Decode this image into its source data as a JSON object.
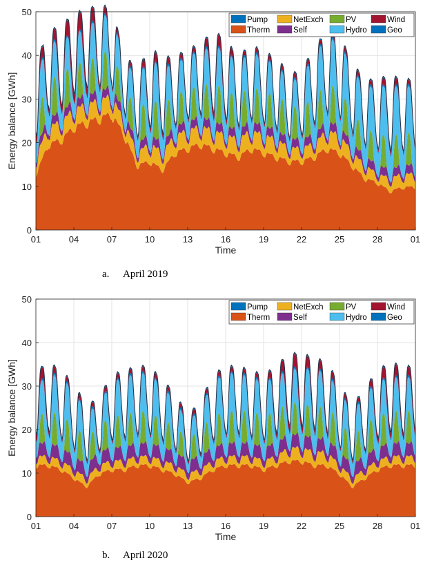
{
  "captions": [
    "a.\tApril 2019",
    "b.\tApril 2020"
  ],
  "chart_data": [
    {
      "type": "area",
      "stacked": true,
      "xlabel": "Time",
      "ylabel": "Energy balance [GWh]",
      "ylim": [
        0,
        50
      ],
      "yticks": [
        0,
        10,
        20,
        30,
        40,
        50
      ],
      "xticks": [
        "01",
        "04",
        "07",
        "10",
        "13",
        "16",
        "19",
        "22",
        "25",
        "28",
        "01"
      ],
      "legend_position": "top-right",
      "grid": true,
      "series": [
        {
          "name": "Therm",
          "color": "#d95319",
          "values": [
            13,
            20,
            21,
            24,
            25,
            26,
            27,
            22,
            15,
            16,
            14,
            18,
            19,
            20,
            19,
            18,
            17,
            19,
            18,
            17,
            16,
            16,
            17,
            19,
            18,
            15,
            12,
            11,
            9,
            10
          ]
        },
        {
          "name": "NetExch",
          "color": "#edb120",
          "values": [
            4,
            4,
            4,
            4,
            4,
            4,
            4,
            3,
            3,
            4,
            4,
            4,
            4,
            4,
            4,
            4,
            4,
            4,
            4,
            4,
            3,
            3,
            3,
            4,
            4,
            3,
            3,
            2,
            3,
            3
          ]
        },
        {
          "name": "Self",
          "color": "#7e2f8e",
          "values": [
            2,
            2,
            2,
            2,
            2,
            2,
            2,
            2,
            2,
            2,
            2,
            2,
            2,
            2,
            2,
            2,
            2,
            2,
            2,
            2,
            2,
            2,
            2,
            2,
            2,
            2,
            2,
            2,
            2,
            2
          ]
        },
        {
          "name": "PV",
          "color": "#77ac30",
          "values": [
            6,
            7,
            7,
            7,
            6,
            7,
            7,
            5,
            6,
            7,
            7,
            6,
            6,
            6,
            7,
            7,
            6,
            7,
            6,
            7,
            6,
            6,
            7,
            7,
            7,
            6,
            5,
            6,
            6,
            6
          ]
        },
        {
          "name": "Hydro",
          "color": "#4dbeee",
          "values": [
            9,
            9,
            8,
            7,
            8,
            9,
            8,
            6,
            8,
            9,
            9,
            7,
            8,
            8,
            9,
            9,
            8,
            8,
            8,
            7,
            6,
            7,
            10,
            11,
            11,
            10,
            10,
            11,
            12,
            11
          ]
        },
        {
          "name": "Geo",
          "color": "#0072bd",
          "values": [
            0.5,
            0.5,
            0.5,
            0.5,
            0.5,
            0.5,
            0.5,
            0.5,
            0.5,
            0.5,
            0.5,
            0.5,
            0.5,
            0.5,
            0.5,
            0.5,
            0.5,
            0.5,
            0.5,
            0.5,
            0.5,
            0.5,
            0.5,
            0.5,
            0.5,
            0.5,
            0.5,
            0.5,
            0.5,
            0.5
          ]
        },
        {
          "name": "Wind",
          "color": "#a2142f",
          "values": [
            3,
            2,
            3,
            4,
            4,
            2,
            1,
            1,
            1,
            2,
            2,
            1,
            1,
            1,
            3,
            2,
            1,
            1,
            1,
            1,
            1,
            1,
            1,
            1,
            1,
            1,
            1,
            1,
            2,
            1
          ]
        },
        {
          "name": "Pump",
          "color": "#0072bd",
          "values": [
            0.3,
            0.3,
            0.3,
            0.3,
            0.3,
            0.3,
            0.3,
            0.3,
            0.3,
            0.3,
            0.3,
            0.3,
            0.3,
            0.3,
            0.3,
            0.3,
            0.3,
            0.3,
            0.3,
            0.3,
            0.3,
            0.3,
            0.3,
            0.3,
            0.3,
            0.3,
            0.3,
            0.3,
            0.3,
            0.3
          ]
        }
      ]
    },
    {
      "type": "area",
      "stacked": true,
      "xlabel": "Time",
      "ylabel": "Energy balance [GWh]",
      "ylim": [
        0,
        50
      ],
      "yticks": [
        0,
        10,
        20,
        30,
        40,
        50
      ],
      "xticks": [
        "01",
        "04",
        "07",
        "10",
        "13",
        "16",
        "19",
        "22",
        "25",
        "28",
        "01"
      ],
      "legend_position": "top-right",
      "grid": true,
      "series": [
        {
          "name": "Therm",
          "color": "#d95319",
          "values": [
            12,
            12,
            11,
            9,
            7,
            10,
            11,
            11,
            12,
            12,
            11,
            10,
            8,
            9,
            11,
            12,
            12,
            12,
            11,
            12,
            13,
            13,
            12,
            12,
            10,
            7,
            9,
            11,
            12,
            12
          ]
        },
        {
          "name": "NetExch",
          "color": "#edb120",
          "values": [
            2,
            2,
            2,
            2,
            2,
            2,
            2,
            2,
            2,
            2,
            2,
            2,
            2,
            2,
            2,
            2,
            2,
            2,
            2,
            2,
            3,
            3,
            3,
            3,
            2,
            2,
            2,
            2,
            2,
            2
          ]
        },
        {
          "name": "Self",
          "color": "#7e2f8e",
          "values": [
            3,
            3,
            3,
            3,
            3,
            3,
            3,
            3,
            3,
            3,
            3,
            3,
            3,
            3,
            3,
            3,
            3,
            3,
            3,
            3,
            3,
            3,
            3,
            3,
            3,
            3,
            3,
            3,
            3,
            3
          ]
        },
        {
          "name": "PV",
          "color": "#77ac30",
          "values": [
            5,
            6,
            6,
            6,
            5,
            5,
            6,
            6,
            6,
            6,
            5,
            5,
            4,
            5,
            6,
            6,
            6,
            6,
            6,
            6,
            6,
            6,
            6,
            6,
            6,
            5,
            6,
            6,
            6,
            6
          ]
        },
        {
          "name": "Hydro",
          "color": "#4dbeee",
          "values": [
            7,
            9,
            9,
            8,
            6,
            5,
            8,
            9,
            9,
            9,
            8,
            6,
            4,
            5,
            8,
            9,
            9,
            8,
            8,
            8,
            8,
            8,
            9,
            8,
            7,
            6,
            7,
            8,
            8,
            8
          ]
        },
        {
          "name": "Geo",
          "color": "#0072bd",
          "values": [
            0.5,
            0.5,
            0.5,
            0.5,
            0.5,
            0.5,
            0.5,
            0.5,
            0.5,
            0.5,
            0.5,
            0.5,
            0.5,
            0.5,
            0.5,
            0.5,
            0.5,
            0.5,
            0.5,
            0.5,
            0.5,
            0.5,
            0.5,
            0.5,
            0.5,
            0.5,
            0.5,
            0.5,
            0.5,
            0.5
          ]
        },
        {
          "name": "Wind",
          "color": "#a2142f",
          "values": [
            3,
            2,
            1,
            1,
            1,
            1,
            1,
            1,
            1,
            1,
            1,
            1,
            1,
            1,
            1,
            1,
            1,
            1,
            1,
            2,
            3,
            3,
            2,
            2,
            1,
            1,
            1,
            2,
            3,
            2
          ]
        },
        {
          "name": "Pump",
          "color": "#0072bd",
          "values": [
            0.3,
            0.3,
            0.3,
            0.3,
            0.3,
            0.3,
            0.3,
            0.3,
            0.3,
            0.3,
            0.3,
            0.3,
            0.3,
            0.3,
            0.3,
            0.3,
            0.3,
            0.3,
            0.3,
            0.3,
            0.3,
            0.3,
            0.3,
            0.3,
            0.3,
            0.3,
            0.3,
            0.3,
            0.3,
            0.3
          ]
        }
      ]
    }
  ]
}
